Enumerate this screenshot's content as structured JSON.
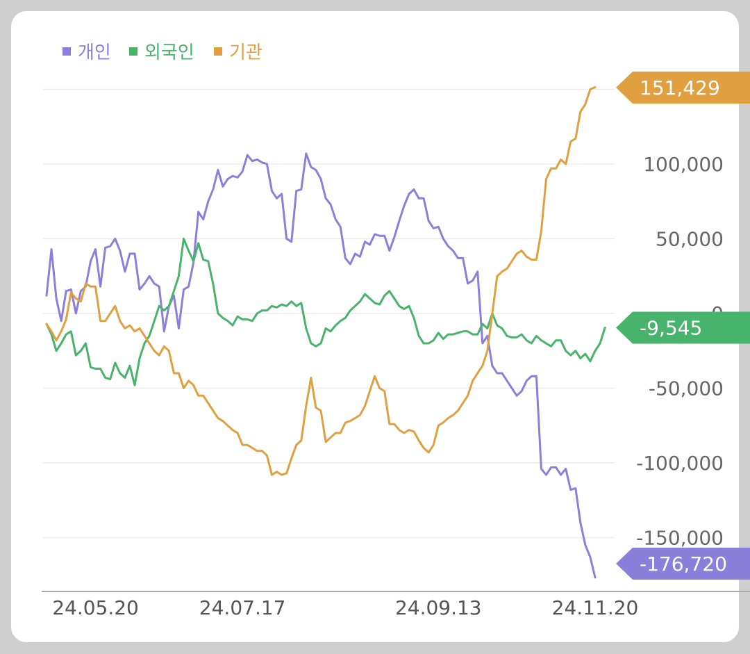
{
  "chart_data": {
    "type": "line",
    "title": "",
    "xlabel": "",
    "ylabel": "",
    "ylim": [
      -176720,
      151429
    ],
    "y_ticks": [
      {
        "value": 100000,
        "label": "100,000"
      },
      {
        "value": 50000,
        "label": "50,000"
      },
      {
        "value": 0,
        "label": "0"
      },
      {
        "value": -50000,
        "label": "-50,000"
      },
      {
        "value": -100000,
        "label": "-100,000"
      },
      {
        "value": -150000,
        "label": "-150,000"
      }
    ],
    "x_ticks": [
      {
        "index": 10,
        "label": "24.05.20"
      },
      {
        "index": 40,
        "label": "24.07.17"
      },
      {
        "index": 80,
        "label": "24.09.13"
      },
      {
        "index": 112,
        "label": "24.11.20"
      }
    ],
    "grid": true,
    "legend_position": "top-left",
    "series": [
      {
        "name": "개인",
        "color": "#8b7fdc",
        "end_label": "-176,720",
        "values": [
          12000,
          43000,
          10000,
          -5000,
          15000,
          16000,
          0,
          15000,
          18000,
          35000,
          43000,
          18000,
          44000,
          45000,
          50000,
          42000,
          28000,
          40000,
          40000,
          16000,
          20000,
          25000,
          20000,
          18000,
          -12000,
          5000,
          12000,
          -10000,
          16000,
          18000,
          34000,
          68000,
          63000,
          75000,
          83000,
          96000,
          85000,
          90000,
          92000,
          91000,
          95000,
          106000,
          102000,
          103000,
          101000,
          100000,
          82000,
          77000,
          80000,
          50000,
          48000,
          82000,
          83000,
          107000,
          98000,
          96000,
          90000,
          77000,
          73000,
          63000,
          58000,
          37000,
          33000,
          40000,
          38000,
          48000,
          46000,
          53000,
          52000,
          52000,
          42000,
          51000,
          62000,
          72000,
          80000,
          83000,
          77000,
          77000,
          62000,
          57000,
          58000,
          50000,
          45000,
          42000,
          37000,
          37000,
          20000,
          22000,
          28000,
          -20000,
          -15000,
          -35000,
          -40000,
          -40000,
          -45000,
          -50000,
          -55000,
          -52000,
          -45000,
          -42000,
          -42000,
          -104000,
          -108000,
          -103000,
          -103000,
          -108000,
          -104000,
          -118000,
          -117000,
          -140000,
          -155000,
          -163000,
          -176720
        ]
      },
      {
        "name": "외국인",
        "color": "#47b36b",
        "end_label": "-9,545",
        "values": [
          -7000,
          -14000,
          -25000,
          -20000,
          -14000,
          -12000,
          -28000,
          -25000,
          -20000,
          -36000,
          -37000,
          -37000,
          -43000,
          -44000,
          -33000,
          -40000,
          -43000,
          -35000,
          -48000,
          -30000,
          -20000,
          -15000,
          -5000,
          5000,
          2000,
          5000,
          15000,
          25000,
          50000,
          42000,
          35000,
          47000,
          36000,
          35000,
          20000,
          0,
          -3000,
          -5000,
          -8000,
          -2000,
          -4000,
          -4000,
          -5000,
          0,
          2000,
          2000,
          5000,
          4000,
          6000,
          5000,
          8000,
          5000,
          7000,
          -10000,
          -20000,
          -22000,
          -20000,
          -10000,
          -12000,
          -8000,
          -5000,
          -3000,
          2000,
          5000,
          8000,
          13000,
          10000,
          7000,
          6000,
          12000,
          15000,
          10000,
          5000,
          3000,
          5000,
          -3000,
          -15000,
          -20000,
          -20000,
          -18000,
          -13000,
          -17000,
          -14000,
          -14000,
          -13000,
          -12000,
          -12000,
          -14000,
          -14000,
          -7000,
          -10000,
          0,
          -8000,
          -10000,
          -15000,
          -16000,
          -16000,
          -14000,
          -18000,
          -20000,
          -15000,
          -18000,
          -20000,
          -22000,
          -18000,
          -18000,
          -25000,
          -28000,
          -25000,
          -30000,
          -27000,
          -32000,
          -25000,
          -20000,
          -9545
        ]
      },
      {
        "name": "기관",
        "color": "#e0a040",
        "end_label": "151,429",
        "values": [
          -7000,
          -12000,
          -18000,
          -12000,
          -4000,
          14000,
          10000,
          8000,
          20000,
          18000,
          18000,
          -5000,
          -5000,
          0,
          5000,
          -5000,
          -10000,
          -8000,
          -12000,
          -10000,
          -15000,
          -20000,
          -25000,
          -28000,
          -22000,
          -25000,
          -40000,
          -40000,
          -50000,
          -45000,
          -48000,
          -55000,
          -55000,
          -60000,
          -65000,
          -70000,
          -72000,
          -75000,
          -78000,
          -80000,
          -88000,
          -88000,
          -90000,
          -92000,
          -92000,
          -95000,
          -108000,
          -106000,
          -108000,
          -107000,
          -97000,
          -88000,
          -85000,
          -62000,
          -43000,
          -63000,
          -65000,
          -86000,
          -83000,
          -80000,
          -80000,
          -73000,
          -72000,
          -70000,
          -68000,
          -62000,
          -52000,
          -42000,
          -50000,
          -52000,
          -74000,
          -74000,
          -78000,
          -80000,
          -78000,
          -79000,
          -85000,
          -90000,
          -93000,
          -88000,
          -75000,
          -73000,
          -70000,
          -68000,
          -65000,
          -60000,
          -55000,
          -45000,
          -40000,
          -35000,
          -25000,
          0,
          25000,
          28000,
          30000,
          35000,
          40000,
          42000,
          38000,
          36000,
          36000,
          55000,
          90000,
          97000,
          97000,
          103000,
          100000,
          115000,
          117000,
          135000,
          140000,
          150000,
          151429
        ]
      }
    ]
  }
}
